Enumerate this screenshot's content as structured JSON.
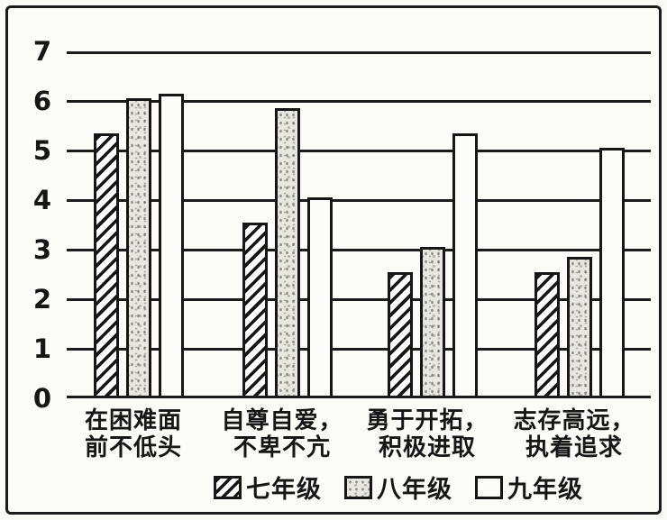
{
  "chart_data": {
    "type": "bar",
    "title": "",
    "xlabel": "",
    "ylabel": "",
    "ylim": [
      0,
      7
    ],
    "yticks": [
      0,
      1,
      2,
      3,
      4,
      5,
      6,
      7
    ],
    "grid": "horizontal",
    "legend_position": "bottom-center",
    "categories": [
      {
        "lines": [
          "在困难面",
          "前不低头"
        ]
      },
      {
        "lines": [
          "自尊自爱，",
          "不卑不亢"
        ]
      },
      {
        "lines": [
          "勇于开拓，",
          "积极进取"
        ]
      },
      {
        "lines": [
          "志存高远，",
          "执着追求"
        ]
      }
    ],
    "series": [
      {
        "name": "七年级",
        "pattern": "diagonal-hatch",
        "values": [
          5.3,
          3.5,
          2.5,
          2.5
        ]
      },
      {
        "name": "八年级",
        "pattern": "speckle",
        "values": [
          6.0,
          5.8,
          3.0,
          2.8
        ]
      },
      {
        "name": "九年级",
        "pattern": "plain-white",
        "values": [
          6.1,
          4.0,
          5.3,
          5.0
        ]
      }
    ]
  },
  "colors": {
    "ink": "#1b1b1b",
    "paper": "#fafaf7",
    "speckle_fill": "#e9e7e2"
  }
}
